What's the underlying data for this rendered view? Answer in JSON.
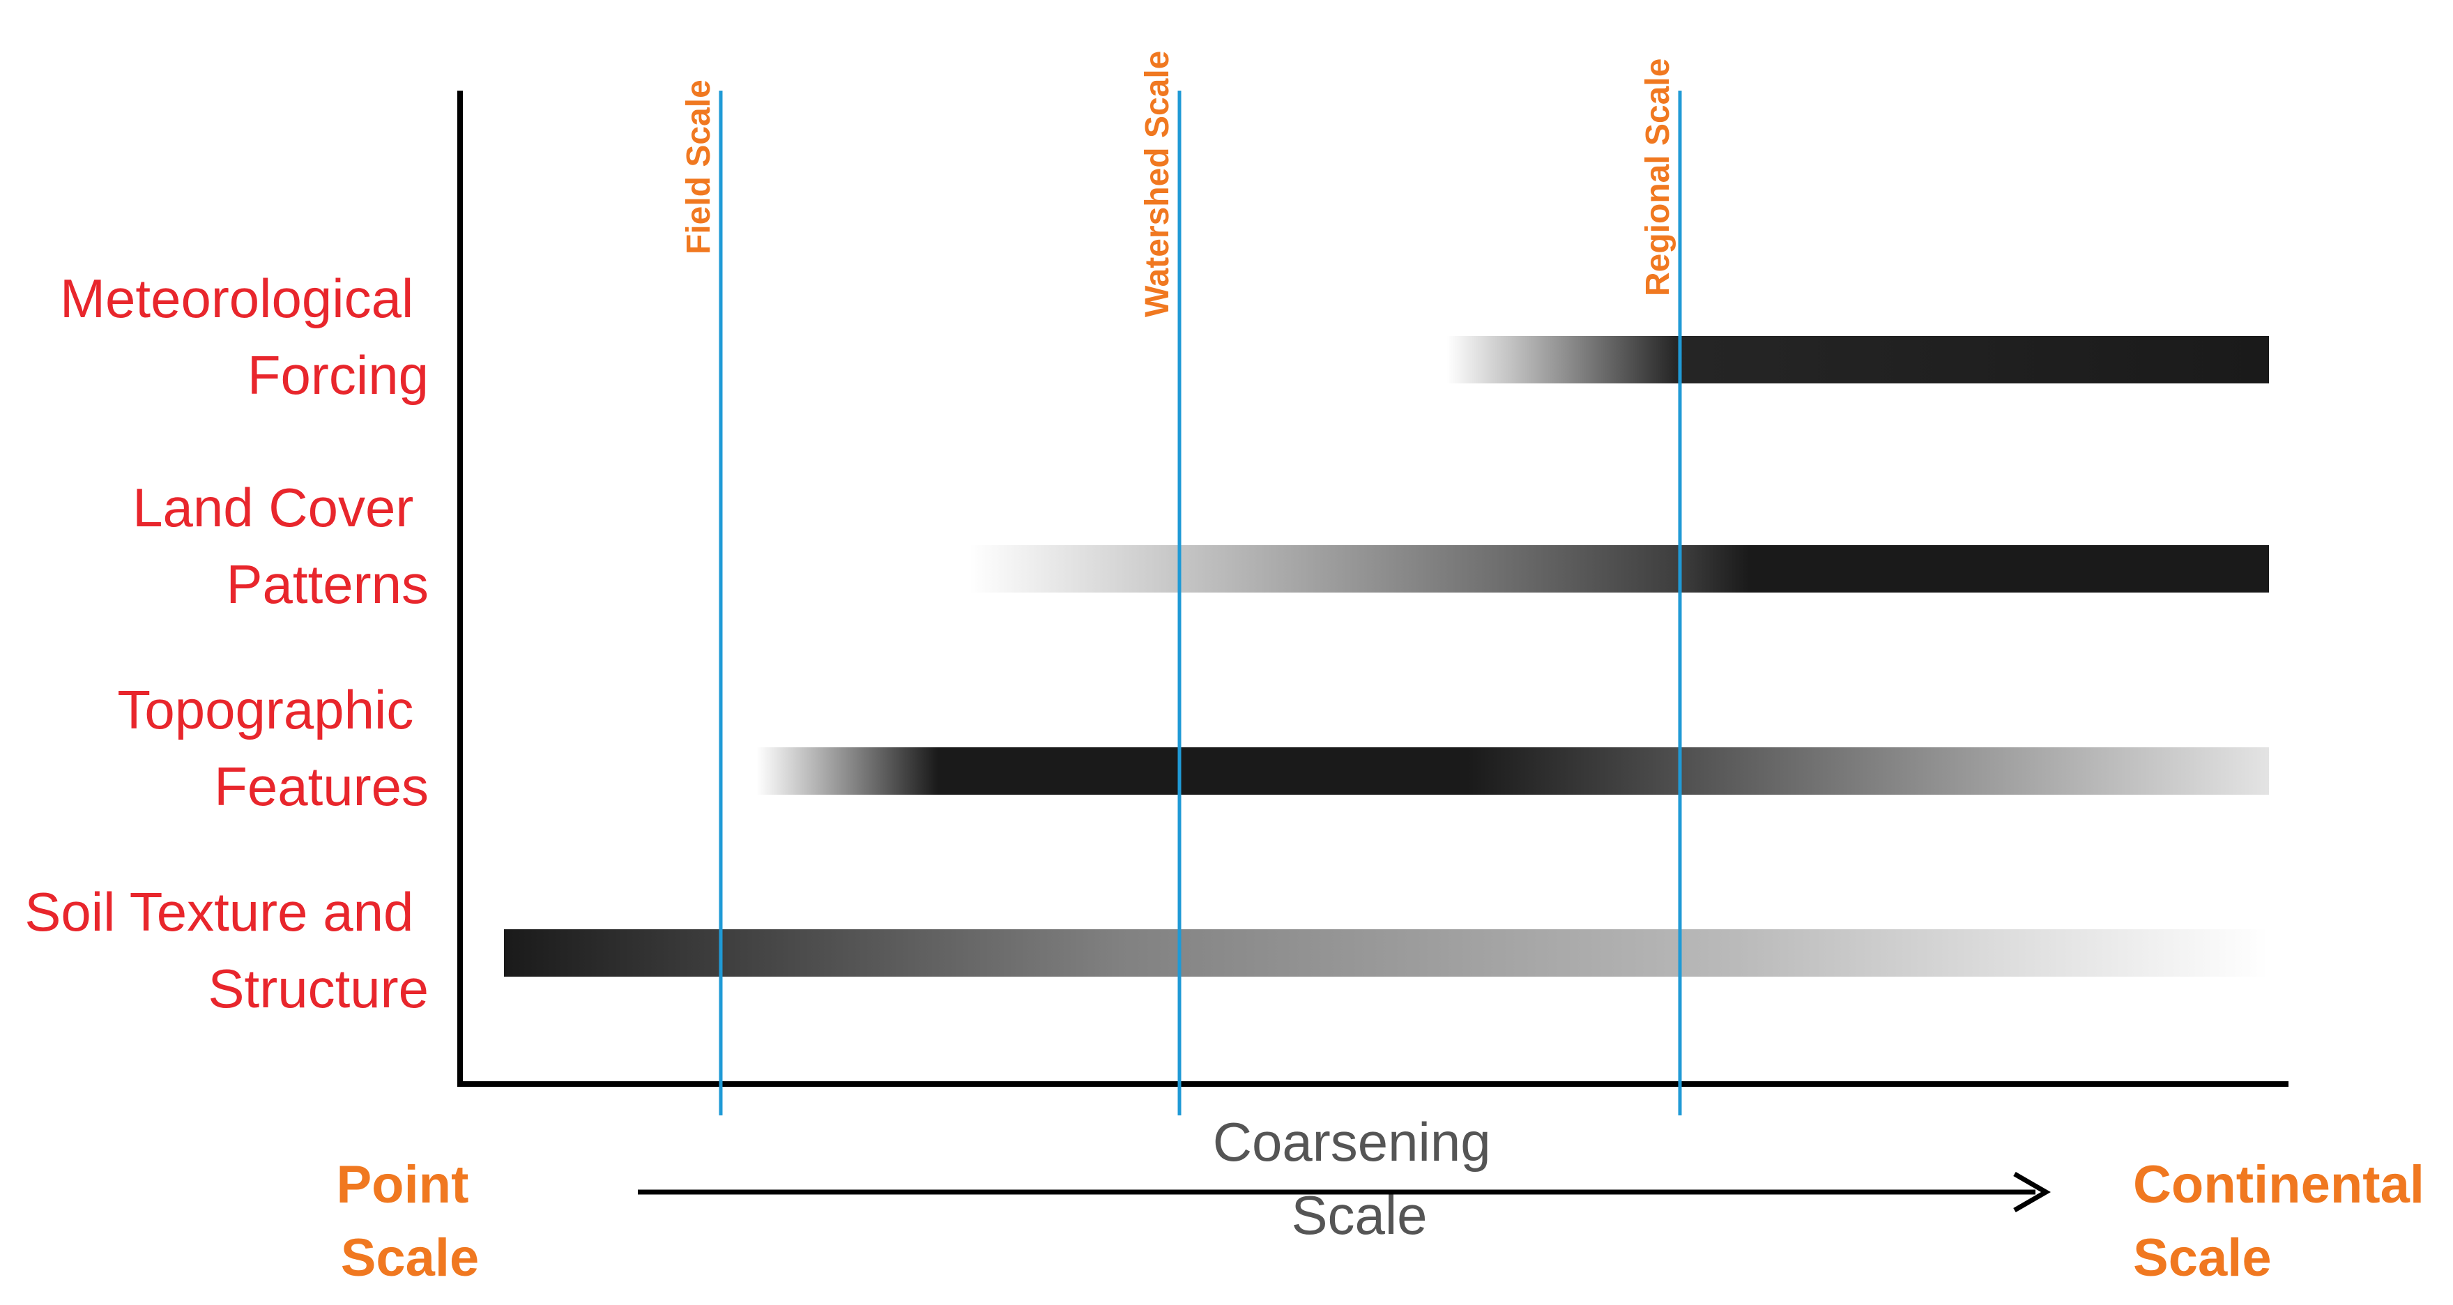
{
  "colors": {
    "factor_label": "#e8262c",
    "scale_label": "#f07820",
    "scale_line": "#1f9ad6",
    "axis": "#000000",
    "bar_dark": "#1a1a1a",
    "axis_label": "#555555"
  },
  "factors": [
    {
      "id": "meteorological",
      "lines": [
        "Meteorological",
        "Forcing"
      ],
      "gradient": [
        {
          "at": 0.0,
          "opacity": 0.0
        },
        {
          "at": 0.28,
          "opacity": 0.95
        },
        {
          "at": 1.0,
          "opacity": 1.0
        }
      ]
    },
    {
      "id": "land-cover",
      "lines": [
        "Land Cover",
        "Patterns"
      ],
      "gradient": [
        {
          "at": 0.0,
          "opacity": 0.0
        },
        {
          "at": 0.55,
          "opacity": 0.85
        },
        {
          "at": 0.6,
          "opacity": 1.0
        },
        {
          "at": 1.0,
          "opacity": 1.0
        }
      ]
    },
    {
      "id": "topographic",
      "lines": [
        "Topographic",
        "Features"
      ],
      "gradient": [
        {
          "at": 0.0,
          "opacity": 0.0
        },
        {
          "at": 0.12,
          "opacity": 1.0
        },
        {
          "at": 0.47,
          "opacity": 1.0
        },
        {
          "at": 1.0,
          "opacity": 0.12
        }
      ]
    },
    {
      "id": "soil",
      "lines": [
        "Soil Texture and",
        "Structure"
      ],
      "gradient": [
        {
          "at": 0.0,
          "opacity": 1.0
        },
        {
          "at": 0.35,
          "opacity": 0.55
        },
        {
          "at": 0.7,
          "opacity": 0.3
        },
        {
          "at": 1.0,
          "opacity": 0.0
        }
      ]
    }
  ],
  "scales": [
    {
      "id": "field",
      "label": "Field Scale"
    },
    {
      "id": "watershed",
      "label": "Watershed Scale"
    },
    {
      "id": "regional",
      "label": "Regional Scale"
    }
  ],
  "axis": {
    "start_lines": [
      "Point",
      "Scale"
    ],
    "end_lines": [
      "Continental",
      "Scale"
    ],
    "middle_lines": [
      "Coarsening",
      "Scale"
    ]
  }
}
